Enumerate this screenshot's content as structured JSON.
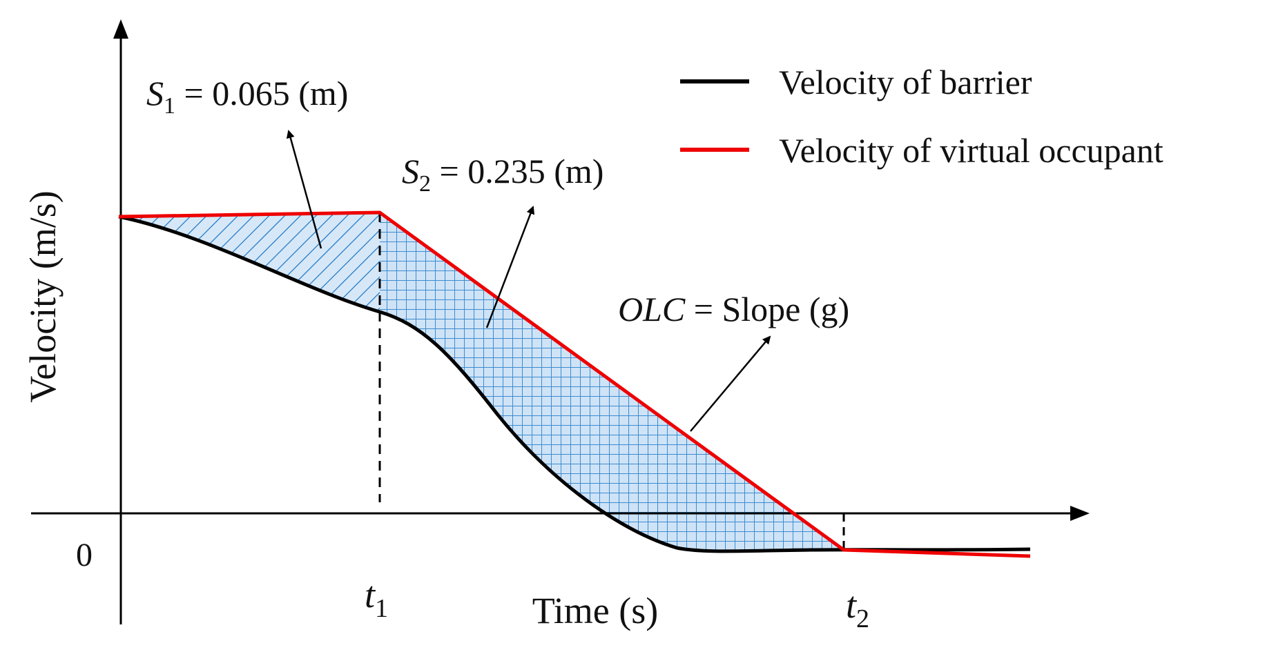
{
  "chart_data": {
    "type": "line",
    "title": "",
    "xlabel": "Time (s)",
    "ylabel": "Velocity (m/s)",
    "origin_label": "0",
    "x_ticks": [
      {
        "base": "t",
        "sub": "1"
      },
      {
        "base": "t",
        "sub": "2"
      }
    ],
    "legend": {
      "placement": "top-right",
      "entries": [
        {
          "label": "Velocity of barrier",
          "color": "#000000"
        },
        {
          "label": "Velocity of virtual occupant",
          "color": "#ee0000"
        }
      ]
    },
    "series": [
      {
        "name": "Velocity of barrier",
        "color": "#000000"
      },
      {
        "name": "Velocity of virtual occupant",
        "color": "#ee0000"
      }
    ],
    "annotations": {
      "s1": {
        "var": "S",
        "sub": "1",
        "rest": " = 0.065 (m)"
      },
      "s2": {
        "var": "S",
        "sub": "2",
        "rest": " = 0.235 (m)"
      },
      "olc": {
        "var": "OLC",
        "rest": " = Slope (g)"
      }
    },
    "hatch_color": "#1f77c4",
    "fill_color": "#cfe3f6"
  }
}
